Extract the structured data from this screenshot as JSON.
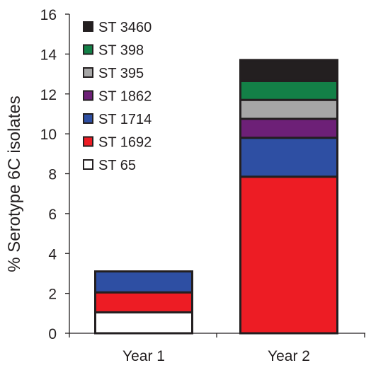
{
  "chart_data": {
    "type": "bar",
    "stacked": true,
    "categories": [
      "Year 1",
      "Year 2"
    ],
    "ylabel": "% Serotype 6C isolates",
    "xlabel": "",
    "ylim": [
      0,
      16
    ],
    "yticks": [
      0,
      2,
      4,
      6,
      8,
      10,
      12,
      14,
      16
    ],
    "grid": false,
    "legend_position": "top-left",
    "series": [
      {
        "name": "ST 65",
        "color": "#ffffff",
        "values": [
          1.05,
          0
        ]
      },
      {
        "name": "ST 1692",
        "color": "#ed1c24",
        "values": [
          1.0,
          7.85
        ]
      },
      {
        "name": "ST 1714",
        "color": "#2e4fa3",
        "values": [
          1.05,
          1.95
        ]
      },
      {
        "name": "ST 1862",
        "color": "#6d2077",
        "values": [
          0,
          0.95
        ]
      },
      {
        "name": "ST 395",
        "color": "#a6a6a6",
        "values": [
          0,
          0.95
        ]
      },
      {
        "name": "ST 398",
        "color": "#138047",
        "values": [
          0,
          0.95
        ]
      },
      {
        "name": "ST 3460",
        "color": "#231f20",
        "values": [
          0,
          1.05
        ]
      }
    ]
  }
}
